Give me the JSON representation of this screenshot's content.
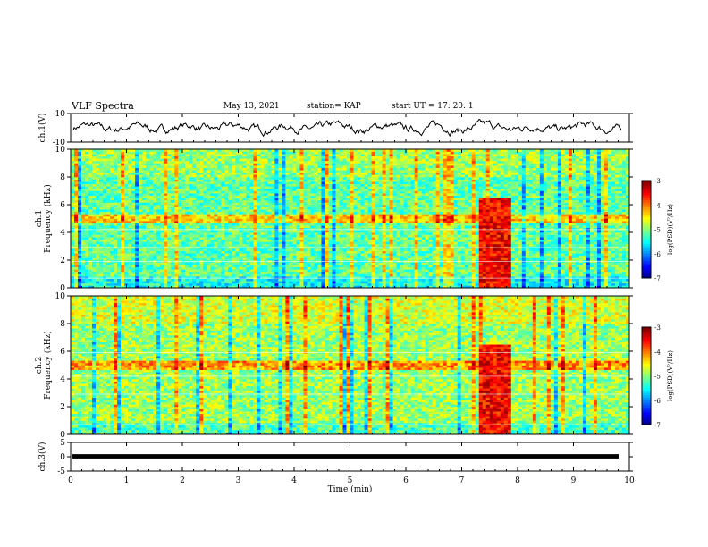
{
  "header": {
    "title": "VLF Spectra",
    "date": "May 13, 2021",
    "station": "station= KAP",
    "start": "start  UT  =    17: 20: 1"
  },
  "chart_data": [
    {
      "type": "line",
      "ylabel": "ch.1(V)",
      "ylim": [
        -10,
        10
      ],
      "yticks": [
        "10",
        "-10"
      ],
      "xlim": [
        0,
        10
      ],
      "series_color": "#000000",
      "description_of_values": "noisy waveform oscillating mostly between -5 and 5 V"
    },
    {
      "type": "heatmap",
      "ylabel_top": "ch.1",
      "ylabel": "Frequency (kHz)",
      "ylim": [
        0,
        10
      ],
      "yticks": [
        "0",
        "2",
        "4",
        "6",
        "8",
        "10"
      ],
      "xlim": [
        0,
        10
      ],
      "colorbar": {
        "ticks": [
          "-3",
          "-4",
          "-5",
          "-6",
          "-7"
        ],
        "label": "log(PSD)(V²/Hz)",
        "range": [
          -7,
          -3
        ]
      },
      "bursts": [
        [
          7.3,
          7.9
        ]
      ]
    },
    {
      "type": "heatmap",
      "ylabel_top": "ch.2",
      "ylabel": "Frequency (kHz)",
      "ylim": [
        0,
        10
      ],
      "yticks": [
        "0",
        "2",
        "4",
        "6",
        "8",
        "10"
      ],
      "xlim": [
        0,
        10
      ],
      "colorbar": {
        "ticks": [
          "-3",
          "-4",
          "-5",
          "-6",
          "-7"
        ],
        "label": "log(PSD)(V²/Hz)",
        "range": [
          -7,
          -3
        ]
      },
      "bursts": [
        [
          7.3,
          7.9
        ]
      ]
    },
    {
      "type": "line",
      "ylabel": "ch.3(V)",
      "ylim": [
        -5,
        5
      ],
      "yticks": [
        "5",
        "0",
        "-5"
      ],
      "xlim": [
        0,
        10
      ],
      "series_color": "#000000"
    }
  ],
  "xaxis": {
    "label": "Time (min)",
    "ticks": [
      "0",
      "1",
      "2",
      "3",
      "4",
      "5",
      "6",
      "7",
      "8",
      "9",
      "10"
    ]
  }
}
